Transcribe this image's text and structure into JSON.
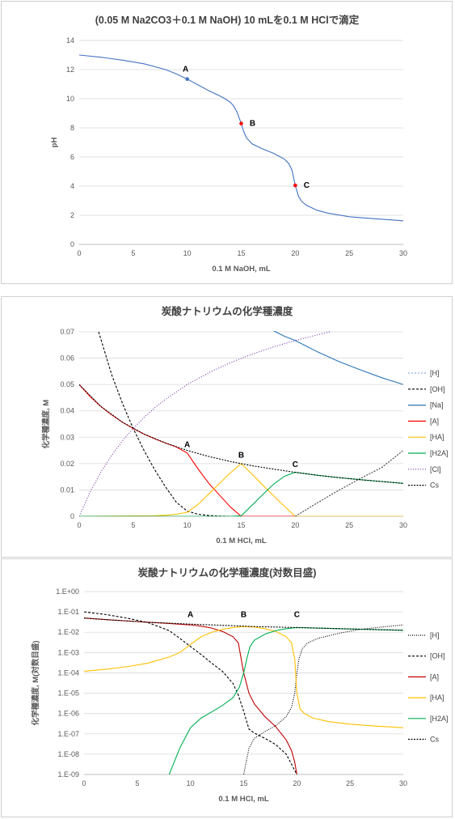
{
  "chart_data": [
    {
      "type": "line",
      "title": "(0.05 M Na2CO3＋0.1 M NaOH) 10 mLを0.1 M HClで滴定",
      "xlabel": "0.1 M NaOH, mL",
      "ylabel": "pH",
      "xlim": [
        0,
        30
      ],
      "ylim": [
        0,
        14
      ],
      "xticks": [
        "0",
        "5",
        "10",
        "15",
        "20",
        "25",
        "30"
      ],
      "yticks": [
        "0",
        "2",
        "4",
        "6",
        "8",
        "10",
        "12",
        "14"
      ],
      "grid": "horizontal",
      "series": [
        {
          "color": "#4472c4",
          "x": [
            0,
            2,
            4,
            6,
            8,
            9,
            10,
            11,
            12,
            13,
            13.5,
            14,
            14.3,
            14.6,
            14.8,
            15,
            15.2,
            15.5,
            16,
            17,
            18,
            19,
            19.4,
            19.7,
            20,
            20.3,
            20.6,
            21,
            22,
            23,
            25,
            27,
            30
          ],
          "y": [
            13.0,
            12.85,
            12.65,
            12.4,
            12.0,
            11.7,
            11.35,
            10.95,
            10.55,
            10.2,
            10.0,
            9.75,
            9.5,
            9.1,
            8.7,
            8.3,
            7.8,
            7.3,
            6.9,
            6.55,
            6.25,
            5.85,
            5.55,
            5.1,
            4.05,
            3.3,
            2.95,
            2.7,
            2.35,
            2.15,
            1.9,
            1.78,
            1.62
          ]
        }
      ],
      "points": [
        {
          "label": "A",
          "x": 10,
          "y": 11.35,
          "color": "#4472c4"
        },
        {
          "label": "B",
          "x": 15,
          "y": 8.3,
          "color": "#ff0000"
        },
        {
          "label": "C",
          "x": 20,
          "y": 4.05,
          "color": "#ff0000"
        }
      ]
    },
    {
      "type": "line",
      "title": "炭酸ナトリウムの化学種濃度",
      "xlabel": "0.1 M HCl, mL",
      "ylabel": "化学種濃度, M",
      "xlim": [
        0,
        30
      ],
      "ylim": [
        0,
        0.07
      ],
      "xticks": [
        "0",
        "5",
        "10",
        "15",
        "20",
        "25",
        "30"
      ],
      "yticks": [
        "0",
        "0.01",
        "0.02",
        "0.03",
        "0.04",
        "0.05",
        "0.06",
        "0.07"
      ],
      "grid": "horizontal",
      "legend": "right",
      "series": [
        {
          "name": "[H]",
          "color": "#8faadc",
          "dash": "2,2",
          "x": [
            0,
            30
          ],
          "y": [
            0,
            0
          ]
        },
        {
          "name": "[OH]",
          "color": "#000000",
          "dash": "3,2",
          "x": [
            1.8,
            3,
            4,
            5,
            6,
            7,
            8,
            9,
            10,
            11,
            12,
            13,
            14,
            15
          ],
          "y": [
            0.07,
            0.0538,
            0.0429,
            0.0333,
            0.025,
            0.0176,
            0.0111,
            0.0053,
            0.002,
            0.0008,
            0.0003,
            0.0001,
            0,
            0
          ]
        },
        {
          "name": "[Na]",
          "color": "#2e75b6",
          "x": [
            17.5,
            18,
            19,
            20,
            22,
            24,
            26,
            28,
            30
          ],
          "y": [
            0.0709,
            0.0704,
            0.0683,
            0.0667,
            0.0625,
            0.0588,
            0.0556,
            0.0526,
            0.05
          ]
        },
        {
          "name": "[A]",
          "color": "#ff0000",
          "x": [
            0,
            1,
            2,
            3,
            4,
            5,
            6,
            7,
            8,
            9,
            10,
            11,
            12,
            13,
            14,
            15,
            16,
            18,
            20,
            25,
            30
          ],
          "y": [
            0.05,
            0.0455,
            0.0417,
            0.0385,
            0.0357,
            0.0333,
            0.0312,
            0.0294,
            0.0278,
            0.0263,
            0.024,
            0.018,
            0.0125,
            0.008,
            0.0035,
            0,
            0,
            0,
            0,
            0,
            0
          ]
        },
        {
          "name": "[HA]",
          "color": "#ffc000",
          "x": [
            0,
            7,
            8,
            9,
            10,
            11,
            12,
            13,
            14,
            15,
            16,
            17,
            18,
            19,
            20,
            25,
            30
          ],
          "y": [
            0,
            0.0002,
            0.0004,
            0.0008,
            0.0015,
            0.0045,
            0.0085,
            0.0125,
            0.0165,
            0.02,
            0.016,
            0.0118,
            0.0078,
            0.0038,
            0,
            0,
            0
          ],
          "dash": ""
        },
        {
          "name": "[H2A]",
          "color": "#00b050",
          "x": [
            0,
            14,
            15,
            16,
            17,
            18,
            19,
            20,
            22,
            24,
            26,
            28,
            30
          ],
          "y": [
            0,
            0,
            0.0002,
            0.0042,
            0.0083,
            0.0122,
            0.0152,
            0.0167,
            0.0156,
            0.0147,
            0.0139,
            0.0132,
            0.0125
          ]
        },
        {
          "name": "[Cl]",
          "color": "#7030a0",
          "dash": "1,2",
          "x": [
            0,
            1,
            2,
            3,
            4,
            5,
            6,
            7,
            8,
            10,
            12,
            14,
            16,
            18,
            20,
            22,
            23.2
          ],
          "y": [
            0,
            0.0091,
            0.0167,
            0.0231,
            0.0286,
            0.0333,
            0.0375,
            0.0412,
            0.0444,
            0.05,
            0.0545,
            0.0583,
            0.0615,
            0.0643,
            0.0667,
            0.0688,
            0.07
          ]
        },
        {
          "name": "Cs",
          "color": "#000000",
          "dash": "2,1.5",
          "x": [
            0,
            2,
            4,
            6,
            8,
            10,
            12,
            14,
            15,
            16,
            18,
            20,
            22,
            24,
            26,
            28,
            30
          ],
          "y": [
            0.05,
            0.0417,
            0.0357,
            0.0312,
            0.0278,
            0.025,
            0.0227,
            0.0208,
            0.02,
            0.0192,
            0.0179,
            0.0167,
            0.0156,
            0.0147,
            0.0139,
            0.0132,
            0.0125
          ]
        },
        {
          "name": "",
          "color": "#404040",
          "dash": "2,1.5",
          "x": [
            20,
            22,
            24,
            26,
            28,
            30
          ],
          "y": [
            0,
            0.005,
            0.0098,
            0.0143,
            0.0185,
            0.025
          ]
        }
      ],
      "legend_entries": [
        "[H]",
        "[OH]",
        "[Na]",
        "[A]",
        "[HA]",
        "[H2A]",
        "[Cl]",
        "Cs"
      ],
      "point_labels": [
        {
          "label": "A",
          "x": 10,
          "y": 0.0262
        },
        {
          "label": "B",
          "x": 15,
          "y": 0.0222
        },
        {
          "label": "C",
          "x": 20,
          "y": 0.0187
        }
      ]
    },
    {
      "type": "line",
      "title": "炭酸ナトリウムの化学種濃度(対数目盛)",
      "xlabel": "0.1 M HCl, mL",
      "ylabel": "化学種濃度, M(対数目盛)",
      "xlim": [
        0,
        30
      ],
      "ylim": [
        1e-09,
        1
      ],
      "yscale": "log",
      "xticks": [
        "0",
        "5",
        "10",
        "15",
        "20",
        "25",
        "30"
      ],
      "yticks": [
        "1.E-09",
        "1.E-08",
        "1.E-07",
        "1.E-06",
        "1.E-05",
        "1.E-04",
        "1.E-03",
        "1.E-02",
        "1.E-01",
        "1.E+00"
      ],
      "grid": "horizontal",
      "legend": "right",
      "series": [
        {
          "name": "[H]",
          "color": "#000000",
          "dash": "1,1.5",
          "x": [
            15,
            15.5,
            16,
            17,
            18,
            19,
            19.5,
            19.8,
            20,
            20.2,
            20.5,
            21,
            22,
            24,
            26,
            28,
            30
          ],
          "y": [
            1e-09,
            2e-08,
            6e-08,
            1.3e-07,
            2.5e-07,
            7e-07,
            2e-06,
            1e-05,
            0.0001,
            0.0005,
            0.0015,
            0.003,
            0.005,
            0.009,
            0.014,
            0.018,
            0.023
          ]
        },
        {
          "name": "[OH]",
          "color": "#000000",
          "dash": "3,2",
          "x": [
            0,
            2,
            4,
            6,
            8,
            9,
            10,
            11,
            12,
            13,
            14,
            14.5,
            15,
            15.5,
            16,
            17,
            18,
            19,
            20
          ],
          "y": [
            0.1,
            0.075,
            0.05,
            0.03,
            0.012,
            0.005,
            0.002,
            0.0008,
            0.0003,
            0.00012,
            3e-05,
            8e-06,
            1.3e-06,
            1.7e-07,
            1.1e-07,
            6e-08,
            3e-08,
            1e-08,
            1e-09
          ]
        },
        {
          "name": "[A]",
          "color": "#c00000",
          "x": [
            0,
            2,
            4,
            6,
            8,
            10,
            11,
            12,
            13,
            14,
            14.5,
            15,
            15.5,
            16,
            17,
            18,
            19,
            19.5,
            19.8,
            20
          ],
          "y": [
            0.05,
            0.042,
            0.036,
            0.031,
            0.027,
            0.023,
            0.02,
            0.016,
            0.011,
            0.006,
            0.003,
            0.0001,
            1e-05,
            3e-06,
            7e-07,
            2.3e-07,
            5e-08,
            1.5e-08,
            4e-09,
            1e-09
          ]
        },
        {
          "name": "[HA]",
          "color": "#ffc000",
          "x": [
            0,
            2,
            4,
            6,
            8,
            9,
            10,
            11,
            12,
            13,
            14,
            15,
            16,
            17,
            18,
            19,
            19.5,
            19.8,
            20,
            20.3,
            20.7,
            21.5,
            23,
            25,
            27,
            30
          ],
          "y": [
            0.00012,
            0.00015,
            0.0002,
            0.0003,
            0.0006,
            0.001,
            0.0025,
            0.006,
            0.01,
            0.014,
            0.017,
            0.019,
            0.018,
            0.015,
            0.011,
            0.006,
            0.003,
            0.0005,
            1e-05,
            1.7e-06,
            1e-06,
            6e-07,
            4e-07,
            3e-07,
            2.5e-07,
            2e-07
          ]
        },
        {
          "name": "[H2A]",
          "color": "#00b050",
          "x": [
            8,
            9,
            10,
            11,
            12,
            13,
            14,
            14.6,
            15,
            15.3,
            15.6,
            16,
            17,
            18,
            19,
            20,
            22,
            25,
            30
          ],
          "y": [
            1e-09,
            2e-08,
            2e-07,
            6e-07,
            1.2e-06,
            2.5e-06,
            6e-06,
            2e-05,
            0.0001,
            0.0005,
            0.002,
            0.004,
            0.008,
            0.012,
            0.015,
            0.017,
            0.016,
            0.0145,
            0.0125
          ]
        },
        {
          "name": "Cs",
          "color": "#000000",
          "dash": "2,1.5",
          "x": [
            0,
            2,
            4,
            6,
            8,
            10,
            12,
            14,
            16,
            18,
            20,
            22,
            25,
            30
          ],
          "y": [
            0.05,
            0.042,
            0.036,
            0.031,
            0.028,
            0.025,
            0.023,
            0.021,
            0.019,
            0.018,
            0.017,
            0.016,
            0.0145,
            0.0125
          ]
        }
      ],
      "legend_entries": [
        "[H]",
        "[OH]",
        "[A]",
        "[HA]",
        "[H2A]",
        "Cs"
      ],
      "point_labels": [
        {
          "label": "A",
          "x": 10,
          "y": 0.055
        },
        {
          "label": "B",
          "x": 15,
          "y": 0.055
        },
        {
          "label": "C",
          "x": 20,
          "y": 0.055
        }
      ]
    }
  ]
}
